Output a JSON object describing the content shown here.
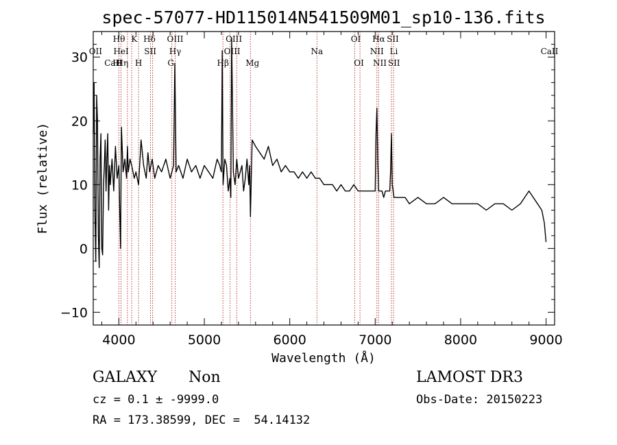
{
  "chart_data": {
    "type": "line",
    "title": "spec-57077-HD115014N541509M01_sp10-136.fits",
    "xlabel": "Wavelength (Å)",
    "ylabel": "Flux (relative)",
    "xlim": [
      3700,
      9100
    ],
    "ylim": [
      -12,
      34
    ],
    "xticks": [
      4000,
      5000,
      6000,
      7000,
      8000,
      9000
    ],
    "yticks": [
      -10,
      0,
      10,
      20,
      30
    ],
    "series": [
      {
        "name": "flux",
        "x": [
          3700,
          3710,
          3720,
          3730,
          3740,
          3750,
          3760,
          3770,
          3780,
          3790,
          3800,
          3810,
          3820,
          3830,
          3840,
          3850,
          3860,
          3870,
          3880,
          3890,
          3900,
          3920,
          3940,
          3960,
          3980,
          4000,
          4010,
          4020,
          4030,
          4050,
          4070,
          4090,
          4100,
          4110,
          4130,
          4150,
          4180,
          4200,
          4230,
          4260,
          4290,
          4320,
          4340,
          4360,
          4390,
          4420,
          4460,
          4500,
          4550,
          4600,
          4640,
          4655,
          4670,
          4700,
          4750,
          4800,
          4850,
          4900,
          4950,
          5000,
          5050,
          5100,
          5150,
          5180,
          5200,
          5210,
          5220,
          5240,
          5260,
          5280,
          5300,
          5310,
          5320,
          5340,
          5360,
          5380,
          5400,
          5420,
          5440,
          5460,
          5480,
          5500,
          5520,
          5530,
          5540,
          5560,
          5600,
          5650,
          5700,
          5750,
          5800,
          5850,
          5900,
          5950,
          6000,
          6050,
          6100,
          6150,
          6200,
          6250,
          6300,
          6350,
          6400,
          6450,
          6500,
          6550,
          6600,
          6650,
          6700,
          6750,
          6800,
          6850,
          6900,
          6950,
          7000,
          7010,
          7020,
          7030,
          7040,
          7060,
          7080,
          7100,
          7120,
          7150,
          7170,
          7180,
          7190,
          7200,
          7220,
          7250,
          7300,
          7350,
          7400,
          7500,
          7600,
          7700,
          7800,
          7900,
          8000,
          8100,
          8200,
          8300,
          8400,
          8500,
          8600,
          8700,
          8800,
          8900,
          8950,
          8980,
          9000
        ],
        "values": [
          18,
          26,
          5,
          -2,
          24,
          20,
          2,
          -3,
          14,
          18,
          0,
          -1,
          10,
          13,
          17,
          9,
          14,
          18,
          6,
          13,
          10,
          14,
          9,
          16,
          11,
          13,
          6,
          0,
          19,
          12,
          14,
          11,
          16,
          12,
          14,
          13,
          11,
          12,
          10,
          17,
          13,
          11,
          15,
          12,
          14,
          11,
          13,
          12,
          14,
          11,
          13,
          29,
          12,
          13,
          11,
          14,
          12,
          13,
          11,
          13,
          12,
          11,
          14,
          13,
          12,
          31,
          10,
          14,
          13,
          9,
          11,
          8,
          33,
          12,
          10,
          14,
          11,
          12,
          13,
          9,
          11,
          14,
          10,
          13,
          5,
          17,
          16,
          15,
          14,
          16,
          13,
          14,
          12,
          13,
          12,
          12,
          11,
          12,
          11,
          12,
          11,
          11,
          10,
          10,
          10,
          9,
          10,
          9,
          9,
          10,
          9,
          9,
          9,
          9,
          9,
          18,
          22,
          14,
          9,
          9,
          9,
          8,
          9,
          9,
          9,
          12,
          18,
          10,
          8,
          8,
          8,
          8,
          7,
          8,
          7,
          7,
          8,
          7,
          7,
          7,
          7,
          6,
          7,
          7,
          6,
          7,
          9,
          7,
          6,
          4,
          1
        ]
      }
    ],
    "line_labels": [
      {
        "name": "OII",
        "wl": 3727,
        "row": 2
      },
      {
        "name": "CaII",
        "wl": 3934,
        "row": 3
      },
      {
        "name": "H",
        "wl": 3969,
        "row": 3
      },
      {
        "name": "Hθ",
        "wl": 4002,
        "row": 1
      },
      {
        "name": "Hη",
        "wl": 4040,
        "row": 3
      },
      {
        "name": "HeI",
        "wl": 4026,
        "row": 2
      },
      {
        "name": "K",
        "wl": 4180,
        "row": 1
      },
      {
        "name": "H",
        "wl": 4230,
        "row": 3
      },
      {
        "name": "Hδ",
        "wl": 4358,
        "row": 1
      },
      {
        "name": "SII",
        "wl": 4367,
        "row": 2
      },
      {
        "name": "OIII",
        "wl": 4659,
        "row": 1
      },
      {
        "name": "Hγ",
        "wl": 4659,
        "row": 2
      },
      {
        "name": "G",
        "wl": 4608,
        "row": 3
      },
      {
        "name": "OIII",
        "wl": 5346,
        "row": 1
      },
      {
        "name": "OIII",
        "wl": 5326,
        "row": 2
      },
      {
        "name": "Hβ",
        "wl": 5218,
        "row": 3
      },
      {
        "name": "Mg",
        "wl": 5563,
        "row": 3
      },
      {
        "name": "Na",
        "wl": 6318,
        "row": 2
      },
      {
        "name": "OI",
        "wl": 6773,
        "row": 1
      },
      {
        "name": "OI",
        "wl": 6810,
        "row": 3
      },
      {
        "name": "Hα",
        "wl": 7041,
        "row": 1
      },
      {
        "name": "NII",
        "wl": 7020,
        "row": 2
      },
      {
        "name": "NII",
        "wl": 7054,
        "row": 3
      },
      {
        "name": "SII",
        "wl": 7206,
        "row": 1
      },
      {
        "name": "Li",
        "wl": 7218,
        "row": 2
      },
      {
        "name": "SII",
        "wl": 7220,
        "row": 3
      },
      {
        "name": "CaII",
        "wl": 9040,
        "row": 2
      }
    ],
    "line_markers": [
      4000,
      4025,
      4100,
      4150,
      4230,
      4370,
      4395,
      4620,
      4660,
      5218,
      5300,
      5380,
      5540,
      6318,
      6760,
      6822,
      7020,
      7040,
      7190,
      7215
    ]
  },
  "info": {
    "object_class": "GALAXY",
    "subclass": "Non",
    "survey": "LAMOST DR3",
    "cz_line": "cz = 0.1 ± -9999.0",
    "obs_date": "Obs-Date: 20150223",
    "coords": "RA = 173.38599, DEC =  54.14132"
  }
}
